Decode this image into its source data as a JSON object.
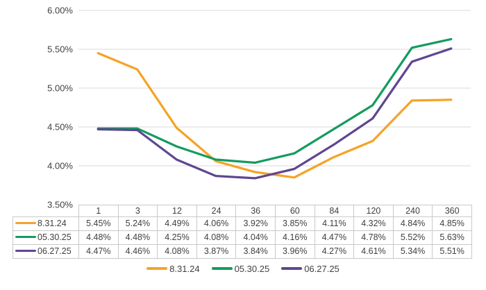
{
  "chart_data": {
    "type": "line",
    "title": "",
    "xlabel": "",
    "ylabel": "",
    "categories": [
      "1",
      "3",
      "12",
      "24",
      "36",
      "60",
      "84",
      "120",
      "240",
      "360"
    ],
    "series": [
      {
        "name": "8.31.24",
        "color": "#F5A327",
        "values": [
          5.45,
          5.24,
          4.49,
          4.06,
          3.92,
          3.85,
          4.11,
          4.32,
          4.84,
          4.85
        ]
      },
      {
        "name": "05.30.25",
        "color": "#149B5F",
        "values": [
          4.48,
          4.48,
          4.25,
          4.08,
          4.04,
          4.16,
          4.47,
          4.78,
          5.52,
          5.63
        ]
      },
      {
        "name": "06.27.25",
        "color": "#5F4690",
        "values": [
          4.47,
          4.46,
          4.08,
          3.87,
          3.84,
          3.96,
          4.27,
          4.61,
          5.34,
          5.51
        ]
      }
    ],
    "ylim": [
      3.5,
      6.0
    ],
    "ytick_step": 0.5,
    "ytick_labels": [
      "6.00%",
      "5.50%",
      "5.00%",
      "4.50%",
      "4.00%",
      "3.50%"
    ],
    "grid": true,
    "legend_position": "bottom"
  },
  "table": {
    "column_headers": [
      "1",
      "3",
      "12",
      "24",
      "36",
      "60",
      "84",
      "120",
      "240",
      "360"
    ],
    "rows": [
      {
        "label": "8.31.24",
        "color": "#F5A327",
        "cells": [
          "5.45%",
          "5.24%",
          "4.49%",
          "4.06%",
          "3.92%",
          "3.85%",
          "4.11%",
          "4.32%",
          "4.84%",
          "4.85%"
        ]
      },
      {
        "label": "05.30.25",
        "color": "#149B5F",
        "cells": [
          "4.48%",
          "4.48%",
          "4.25%",
          "4.08%",
          "4.04%",
          "4.16%",
          "4.47%",
          "4.78%",
          "5.52%",
          "5.63%"
        ]
      },
      {
        "label": "06.27.25",
        "color": "#5F4690",
        "cells": [
          "4.47%",
          "4.46%",
          "4.08%",
          "3.87%",
          "3.84%",
          "3.96%",
          "4.27%",
          "4.61%",
          "5.34%",
          "5.51%"
        ]
      }
    ]
  },
  "legend": {
    "items": [
      {
        "label": "8.31.24",
        "color": "#F5A327"
      },
      {
        "label": "05.30.25",
        "color": "#149B5F"
      },
      {
        "label": "06.27.25",
        "color": "#5F4690"
      }
    ]
  },
  "colors": {
    "gridline": "#D9D9D9",
    "table_border": "#C9C9C9",
    "text": "#404040",
    "background": "#FFFFFF"
  }
}
